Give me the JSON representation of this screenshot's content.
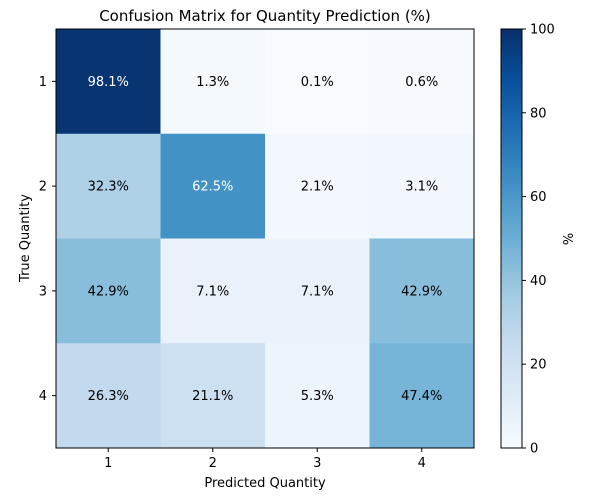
{
  "chart_data": {
    "type": "heatmap",
    "title": "Confusion Matrix for Quantity Prediction (%)",
    "xlabel": "Predicted Quantity",
    "ylabel": "True Quantity",
    "x_categories": [
      "1",
      "2",
      "3",
      "4"
    ],
    "y_categories": [
      "1",
      "2",
      "3",
      "4"
    ],
    "values": [
      [
        98.1,
        1.3,
        0.1,
        0.6
      ],
      [
        32.3,
        62.5,
        2.1,
        3.1
      ],
      [
        42.9,
        7.1,
        7.1,
        42.9
      ],
      [
        26.3,
        21.1,
        5.3,
        47.4
      ]
    ],
    "cell_labels": [
      [
        "98.1%",
        "1.3%",
        "0.1%",
        "0.6%"
      ],
      [
        "32.3%",
        "62.5%",
        "2.1%",
        "3.1%"
      ],
      [
        "42.9%",
        "7.1%",
        "7.1%",
        "42.9%"
      ],
      [
        "26.3%",
        "21.1%",
        "5.3%",
        "47.4%"
      ]
    ],
    "colormap": "Blues",
    "vmin": 0,
    "vmax": 100,
    "colorbar": {
      "label": "%",
      "ticks": [
        "0",
        "20",
        "40",
        "60",
        "80",
        "100"
      ]
    },
    "grid": false
  }
}
